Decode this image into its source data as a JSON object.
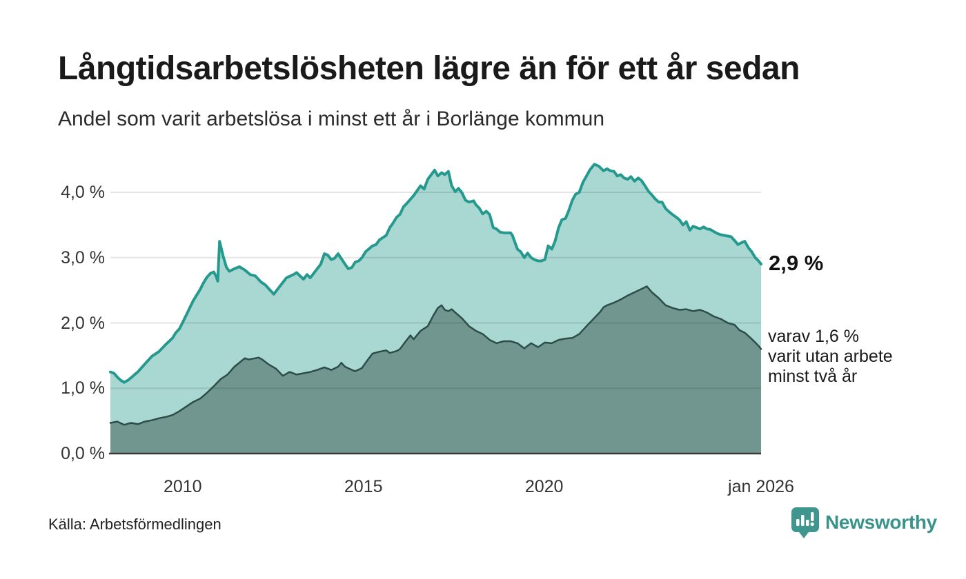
{
  "title": "Långtidsarbetslösheten lägre än för ett år sedan",
  "subtitle": "Andel som varit arbetslösa i minst ett år i Borlänge kommun",
  "source": "Källa: Arbetsförmedlingen",
  "logo": {
    "text": "Newsworthy",
    "color": "#3a938b",
    "icon": "newsworthy-speech-bubble-bar-chart-icon"
  },
  "annotations": {
    "latest_total": "2,9 %",
    "latest_two_years": [
      "varav 1,6 %",
      "varit utan arbete",
      "minst två år"
    ]
  },
  "colors": {
    "line_one_year": "#26998e",
    "fill_one_year": "#a9d7d1",
    "line_two_years": "#2d4d48",
    "fill_two_years": "#70968f",
    "grid": "rgba(0,0,0,0.10)",
    "axis": "#3a3a3a",
    "background": "#ffffff"
  },
  "chart_data": {
    "type": "area",
    "title": "Långtidsarbetslösheten lägre än för ett år sedan",
    "subtitle": "Andel som varit arbetslösa i minst ett år i Borlänge kommun",
    "unit": "%",
    "grid": true,
    "legend_position": "none",
    "x_axis": {
      "range": [
        2008.0,
        2026.0
      ],
      "ticks": [
        {
          "year": 2010,
          "label": "2010"
        },
        {
          "year": 2015,
          "label": "2015"
        },
        {
          "year": 2020,
          "label": "2020"
        },
        {
          "year": 2026,
          "label": "jan 2026"
        }
      ]
    },
    "y_axis": {
      "range": [
        0,
        4.55
      ],
      "ticks": [
        {
          "value": 0,
          "label": "0,0 %"
        },
        {
          "value": 1,
          "label": "1,0 %"
        },
        {
          "value": 2,
          "label": "2,0 %"
        },
        {
          "value": 3,
          "label": "3,0 %"
        },
        {
          "value": 4,
          "label": "4,0 %"
        }
      ]
    },
    "series": [
      {
        "name": "Andel som varit arbetslösa i minst ett år",
        "end_label": "2,9 %",
        "line_color": "#26998e",
        "fill_color": "#a9d7d1",
        "line_width": 4,
        "points": [
          [
            2008.0,
            1.25
          ],
          [
            2008.1,
            1.23
          ],
          [
            2008.19,
            1.17
          ],
          [
            2008.29,
            1.12
          ],
          [
            2008.38,
            1.09
          ],
          [
            2008.48,
            1.12
          ],
          [
            2008.57,
            1.16
          ],
          [
            2008.67,
            1.21
          ],
          [
            2008.76,
            1.25
          ],
          [
            2008.95,
            1.37
          ],
          [
            2009.15,
            1.49
          ],
          [
            2009.34,
            1.56
          ],
          [
            2009.53,
            1.67
          ],
          [
            2009.72,
            1.77
          ],
          [
            2009.81,
            1.85
          ],
          [
            2009.91,
            1.91
          ],
          [
            2010.1,
            2.12
          ],
          [
            2010.29,
            2.34
          ],
          [
            2010.48,
            2.51
          ],
          [
            2010.58,
            2.62
          ],
          [
            2010.67,
            2.7
          ],
          [
            2010.77,
            2.76
          ],
          [
            2010.86,
            2.78
          ],
          [
            2010.92,
            2.72
          ],
          [
            2010.97,
            2.64
          ],
          [
            2011.02,
            3.25
          ],
          [
            2011.12,
            3.02
          ],
          [
            2011.21,
            2.85
          ],
          [
            2011.29,
            2.79
          ],
          [
            2011.43,
            2.83
          ],
          [
            2011.57,
            2.86
          ],
          [
            2011.72,
            2.81
          ],
          [
            2011.87,
            2.74
          ],
          [
            2012.01,
            2.72
          ],
          [
            2012.16,
            2.63
          ],
          [
            2012.29,
            2.58
          ],
          [
            2012.52,
            2.44
          ],
          [
            2012.67,
            2.55
          ],
          [
            2012.87,
            2.69
          ],
          [
            2013.06,
            2.74
          ],
          [
            2013.15,
            2.77
          ],
          [
            2013.34,
            2.67
          ],
          [
            2013.44,
            2.74
          ],
          [
            2013.53,
            2.69
          ],
          [
            2013.72,
            2.83
          ],
          [
            2013.82,
            2.9
          ],
          [
            2013.92,
            3.06
          ],
          [
            2014.01,
            3.04
          ],
          [
            2014.11,
            2.97
          ],
          [
            2014.2,
            2.99
          ],
          [
            2014.3,
            3.06
          ],
          [
            2014.49,
            2.9
          ],
          [
            2014.58,
            2.83
          ],
          [
            2014.68,
            2.85
          ],
          [
            2014.77,
            2.93
          ],
          [
            2014.87,
            2.95
          ],
          [
            2014.96,
            3.0
          ],
          [
            2015.06,
            3.09
          ],
          [
            2015.25,
            3.18
          ],
          [
            2015.35,
            3.2
          ],
          [
            2015.44,
            3.27
          ],
          [
            2015.63,
            3.34
          ],
          [
            2015.73,
            3.46
          ],
          [
            2015.82,
            3.53
          ],
          [
            2015.92,
            3.62
          ],
          [
            2016.01,
            3.66
          ],
          [
            2016.11,
            3.78
          ],
          [
            2016.2,
            3.83
          ],
          [
            2016.39,
            3.95
          ],
          [
            2016.58,
            4.1
          ],
          [
            2016.68,
            4.05
          ],
          [
            2016.78,
            4.2
          ],
          [
            2016.97,
            4.34
          ],
          [
            2017.06,
            4.25
          ],
          [
            2017.16,
            4.3
          ],
          [
            2017.25,
            4.27
          ],
          [
            2017.35,
            4.32
          ],
          [
            2017.44,
            4.1
          ],
          [
            2017.54,
            4.01
          ],
          [
            2017.63,
            4.06
          ],
          [
            2017.73,
            3.99
          ],
          [
            2017.82,
            3.88
          ],
          [
            2017.92,
            3.85
          ],
          [
            2018.05,
            3.87
          ],
          [
            2018.11,
            3.81
          ],
          [
            2018.2,
            3.76
          ],
          [
            2018.3,
            3.67
          ],
          [
            2018.4,
            3.71
          ],
          [
            2018.49,
            3.66
          ],
          [
            2018.59,
            3.46
          ],
          [
            2018.68,
            3.44
          ],
          [
            2018.78,
            3.39
          ],
          [
            2018.88,
            3.38
          ],
          [
            2019.07,
            3.38
          ],
          [
            2019.12,
            3.34
          ],
          [
            2019.2,
            3.22
          ],
          [
            2019.26,
            3.13
          ],
          [
            2019.35,
            3.09
          ],
          [
            2019.45,
            3.0
          ],
          [
            2019.54,
            3.07
          ],
          [
            2019.64,
            3.0
          ],
          [
            2019.73,
            2.97
          ],
          [
            2019.83,
            2.95
          ],
          [
            2019.92,
            2.95
          ],
          [
            2020.02,
            2.97
          ],
          [
            2020.11,
            3.18
          ],
          [
            2020.21,
            3.13
          ],
          [
            2020.3,
            3.25
          ],
          [
            2020.4,
            3.46
          ],
          [
            2020.49,
            3.58
          ],
          [
            2020.59,
            3.6
          ],
          [
            2020.68,
            3.72
          ],
          [
            2020.78,
            3.88
          ],
          [
            2020.87,
            3.97
          ],
          [
            2020.97,
            4.0
          ],
          [
            2021.07,
            4.15
          ],
          [
            2021.17,
            4.25
          ],
          [
            2021.26,
            4.34
          ],
          [
            2021.39,
            4.43
          ],
          [
            2021.51,
            4.4
          ],
          [
            2021.64,
            4.33
          ],
          [
            2021.74,
            4.36
          ],
          [
            2021.83,
            4.33
          ],
          [
            2021.93,
            4.32
          ],
          [
            2022.02,
            4.25
          ],
          [
            2022.12,
            4.27
          ],
          [
            2022.21,
            4.22
          ],
          [
            2022.31,
            4.2
          ],
          [
            2022.4,
            4.24
          ],
          [
            2022.5,
            4.17
          ],
          [
            2022.6,
            4.22
          ],
          [
            2022.69,
            4.18
          ],
          [
            2022.79,
            4.1
          ],
          [
            2022.88,
            4.02
          ],
          [
            2022.98,
            3.96
          ],
          [
            2023.07,
            3.9
          ],
          [
            2023.17,
            3.85
          ],
          [
            2023.26,
            3.85
          ],
          [
            2023.36,
            3.75
          ],
          [
            2023.46,
            3.7
          ],
          [
            2023.55,
            3.66
          ],
          [
            2023.65,
            3.62
          ],
          [
            2023.74,
            3.58
          ],
          [
            2023.84,
            3.5
          ],
          [
            2023.93,
            3.55
          ],
          [
            2024.03,
            3.42
          ],
          [
            2024.12,
            3.48
          ],
          [
            2024.22,
            3.46
          ],
          [
            2024.31,
            3.44
          ],
          [
            2024.41,
            3.47
          ],
          [
            2024.5,
            3.44
          ],
          [
            2024.6,
            3.43
          ],
          [
            2024.69,
            3.4
          ],
          [
            2024.79,
            3.37
          ],
          [
            2024.89,
            3.35
          ],
          [
            2024.98,
            3.34
          ],
          [
            2025.08,
            3.33
          ],
          [
            2025.17,
            3.32
          ],
          [
            2025.27,
            3.26
          ],
          [
            2025.36,
            3.2
          ],
          [
            2025.46,
            3.23
          ],
          [
            2025.55,
            3.25
          ],
          [
            2025.65,
            3.15
          ],
          [
            2025.74,
            3.09
          ],
          [
            2025.84,
            3.0
          ],
          [
            2025.93,
            2.95
          ],
          [
            2026.0,
            2.9
          ]
        ]
      },
      {
        "name": "varav utan arbete minst två år",
        "end_label": "1,6 %",
        "line_color": "#2d4d48",
        "fill_color": "#70968f",
        "line_width": 2.5,
        "points": [
          [
            2008.0,
            0.47
          ],
          [
            2008.19,
            0.49
          ],
          [
            2008.38,
            0.44
          ],
          [
            2008.57,
            0.47
          ],
          [
            2008.76,
            0.45
          ],
          [
            2008.95,
            0.49
          ],
          [
            2009.15,
            0.51
          ],
          [
            2009.34,
            0.54
          ],
          [
            2009.53,
            0.56
          ],
          [
            2009.72,
            0.59
          ],
          [
            2009.91,
            0.65
          ],
          [
            2010.1,
            0.72
          ],
          [
            2010.29,
            0.79
          ],
          [
            2010.48,
            0.84
          ],
          [
            2010.67,
            0.93
          ],
          [
            2010.86,
            1.03
          ],
          [
            2011.05,
            1.14
          ],
          [
            2011.24,
            1.21
          ],
          [
            2011.43,
            1.33
          ],
          [
            2011.63,
            1.42
          ],
          [
            2011.72,
            1.46
          ],
          [
            2011.82,
            1.44
          ],
          [
            2012.01,
            1.46
          ],
          [
            2012.1,
            1.47
          ],
          [
            2012.2,
            1.44
          ],
          [
            2012.39,
            1.36
          ],
          [
            2012.58,
            1.3
          ],
          [
            2012.77,
            1.19
          ],
          [
            2012.96,
            1.25
          ],
          [
            2013.15,
            1.21
          ],
          [
            2013.34,
            1.23
          ],
          [
            2013.53,
            1.25
          ],
          [
            2013.72,
            1.28
          ],
          [
            2013.92,
            1.32
          ],
          [
            2014.11,
            1.28
          ],
          [
            2014.3,
            1.33
          ],
          [
            2014.39,
            1.39
          ],
          [
            2014.49,
            1.33
          ],
          [
            2014.68,
            1.28
          ],
          [
            2014.77,
            1.26
          ],
          [
            2014.96,
            1.31
          ],
          [
            2015.06,
            1.39
          ],
          [
            2015.25,
            1.53
          ],
          [
            2015.44,
            1.56
          ],
          [
            2015.63,
            1.58
          ],
          [
            2015.73,
            1.54
          ],
          [
            2015.92,
            1.57
          ],
          [
            2016.01,
            1.6
          ],
          [
            2016.2,
            1.74
          ],
          [
            2016.3,
            1.81
          ],
          [
            2016.39,
            1.75
          ],
          [
            2016.58,
            1.88
          ],
          [
            2016.78,
            1.95
          ],
          [
            2016.93,
            2.11
          ],
          [
            2017.06,
            2.23
          ],
          [
            2017.16,
            2.27
          ],
          [
            2017.25,
            2.2
          ],
          [
            2017.35,
            2.18
          ],
          [
            2017.44,
            2.21
          ],
          [
            2017.54,
            2.16
          ],
          [
            2017.73,
            2.07
          ],
          [
            2017.92,
            1.95
          ],
          [
            2018.11,
            1.88
          ],
          [
            2018.3,
            1.83
          ],
          [
            2018.49,
            1.74
          ],
          [
            2018.68,
            1.69
          ],
          [
            2018.88,
            1.72
          ],
          [
            2019.07,
            1.72
          ],
          [
            2019.26,
            1.69
          ],
          [
            2019.45,
            1.61
          ],
          [
            2019.54,
            1.65
          ],
          [
            2019.64,
            1.69
          ],
          [
            2019.83,
            1.63
          ],
          [
            2020.02,
            1.7
          ],
          [
            2020.21,
            1.69
          ],
          [
            2020.4,
            1.74
          ],
          [
            2020.59,
            1.76
          ],
          [
            2020.78,
            1.77
          ],
          [
            2020.97,
            1.83
          ],
          [
            2021.17,
            1.95
          ],
          [
            2021.36,
            2.06
          ],
          [
            2021.55,
            2.17
          ],
          [
            2021.64,
            2.24
          ],
          [
            2021.74,
            2.27
          ],
          [
            2021.93,
            2.31
          ],
          [
            2022.12,
            2.36
          ],
          [
            2022.31,
            2.42
          ],
          [
            2022.5,
            2.47
          ],
          [
            2022.69,
            2.52
          ],
          [
            2022.84,
            2.56
          ],
          [
            2022.98,
            2.47
          ],
          [
            2023.17,
            2.38
          ],
          [
            2023.36,
            2.27
          ],
          [
            2023.55,
            2.23
          ],
          [
            2023.74,
            2.2
          ],
          [
            2023.93,
            2.21
          ],
          [
            2024.12,
            2.18
          ],
          [
            2024.31,
            2.2
          ],
          [
            2024.5,
            2.16
          ],
          [
            2024.69,
            2.1
          ],
          [
            2024.89,
            2.06
          ],
          [
            2025.08,
            2.0
          ],
          [
            2025.27,
            1.97
          ],
          [
            2025.4,
            1.89
          ],
          [
            2025.55,
            1.85
          ],
          [
            2025.71,
            1.77
          ],
          [
            2025.84,
            1.7
          ],
          [
            2025.93,
            1.65
          ],
          [
            2026.0,
            1.6
          ]
        ]
      }
    ]
  }
}
